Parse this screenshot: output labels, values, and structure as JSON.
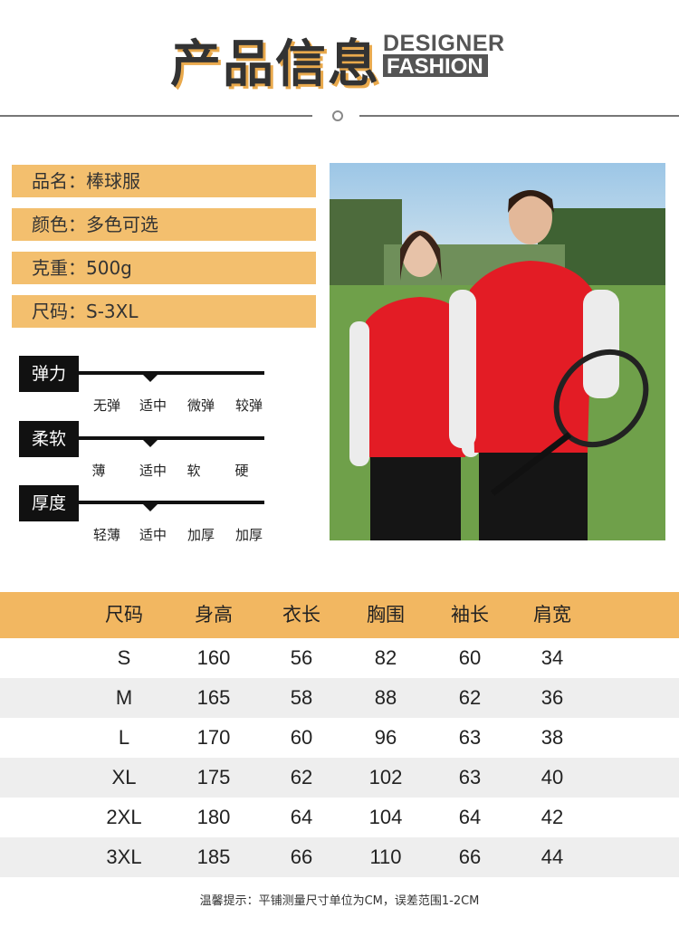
{
  "header": {
    "title": "产品信息",
    "designer": "DESIGNER",
    "fashion": "FASHION"
  },
  "info": [
    {
      "label": "品名：棒球服"
    },
    {
      "label": "颜色：多色可选"
    },
    {
      "label": "克重：500g"
    },
    {
      "label": "尺码：S-3XL"
    }
  ],
  "attributes": [
    {
      "name": "弹力",
      "options": [
        "无弹",
        "适中",
        "微弹",
        "较弹"
      ],
      "selected_index": 1
    },
    {
      "name": "柔软",
      "options": [
        "薄",
        "适中",
        "软",
        "硬"
      ],
      "selected_index": 1
    },
    {
      "name": "厚度",
      "options": [
        "轻薄",
        "适中",
        "加厚",
        "加厚"
      ],
      "selected_index": 1
    }
  ],
  "size_table": {
    "headers": [
      "尺码",
      "身高",
      "衣长",
      "胸围",
      "袖长",
      "肩宽"
    ],
    "rows": [
      [
        "S",
        "160",
        "56",
        "82",
        "60",
        "34"
      ],
      [
        "M",
        "165",
        "58",
        "88",
        "62",
        "36"
      ],
      [
        "L",
        "170",
        "60",
        "96",
        "63",
        "38"
      ],
      [
        "XL",
        "175",
        "62",
        "102",
        "63",
        "40"
      ],
      [
        "2XL",
        "180",
        "64",
        "104",
        "64",
        "42"
      ],
      [
        "3XL",
        "185",
        "66",
        "110",
        "66",
        "44"
      ]
    ]
  },
  "footer": {
    "note": "温馨提示：平铺测量尺寸单位为CM，误差范围1-2CM"
  },
  "colors": {
    "accent": "#f3bf6e",
    "header_bar": "#f2b761",
    "jacket": "#e31c25"
  }
}
